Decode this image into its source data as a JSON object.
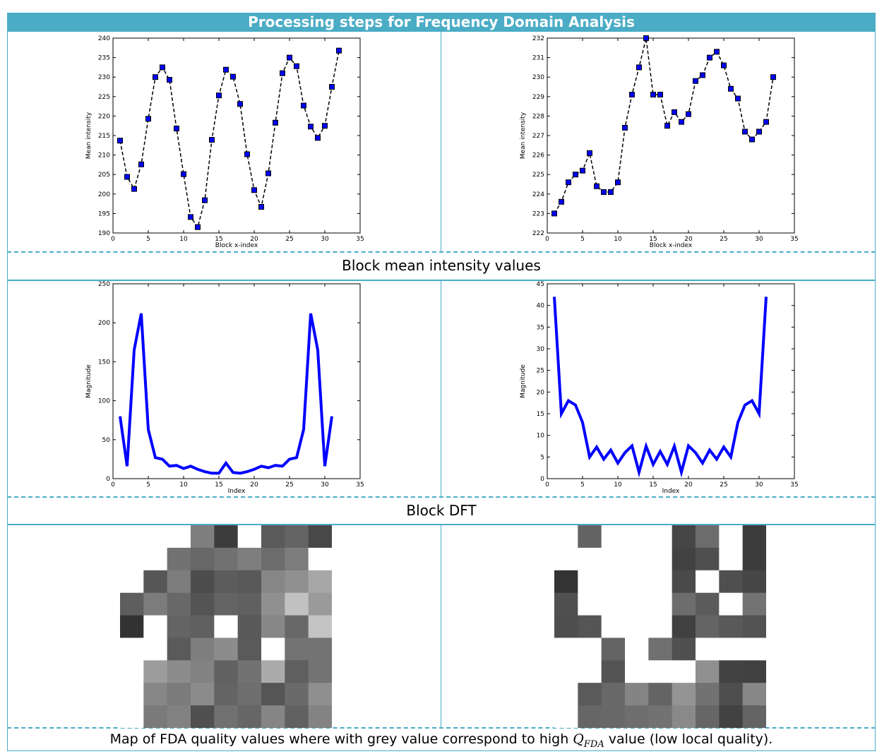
{
  "header": {
    "title": "Processing steps for Frequency Domain Analysis"
  },
  "captions": {
    "row1": "Block mean intensity values",
    "row2": "Block DFT",
    "row3_before": "Map of FDA quality values where with grey value correspond to high ",
    "row3_symbol": "Q",
    "row3_subscript": "FDA",
    "row3_after": " value (low local quality)."
  },
  "chart_data": [
    {
      "type": "line",
      "xlabel": "Block x-index",
      "ylabel": "Mean intensity",
      "xlim": [
        0,
        35
      ],
      "ylim": [
        190,
        240
      ],
      "xticks": [
        0,
        5,
        10,
        15,
        20,
        25,
        30,
        35
      ],
      "yticks": [
        190,
        195,
        200,
        205,
        210,
        215,
        220,
        225,
        230,
        235,
        240
      ],
      "style": {
        "line": "dashed",
        "line_color": "#000000",
        "marker": "square",
        "marker_color": "#0000ff"
      },
      "x": [
        1,
        2,
        3,
        4,
        5,
        6,
        7,
        8,
        9,
        10,
        11,
        12,
        13,
        14,
        15,
        16,
        17,
        18,
        19,
        20,
        21,
        22,
        23,
        24,
        25,
        26,
        27,
        28,
        29,
        30,
        31,
        32
      ],
      "y": [
        213.7,
        204.4,
        201.3,
        207.6,
        219.3,
        230.0,
        232.5,
        229.3,
        216.8,
        205.1,
        194.1,
        191.5,
        198.4,
        213.9,
        225.3,
        231.9,
        230.1,
        223.1,
        210.2,
        201.0,
        196.7,
        205.3,
        218.3,
        231.0,
        235.0,
        232.8,
        222.7,
        217.3,
        214.4,
        217.5,
        227.5,
        236.8
      ],
      "grid": false
    },
    {
      "type": "line",
      "xlabel": "Block x-index",
      "ylabel": "Mean intensity",
      "xlim": [
        0,
        35
      ],
      "ylim": [
        222,
        232
      ],
      "xticks": [
        0,
        5,
        10,
        15,
        20,
        25,
        30,
        35
      ],
      "yticks": [
        222,
        223,
        224,
        225,
        226,
        227,
        228,
        229,
        230,
        231,
        232
      ],
      "style": {
        "line": "dashed",
        "line_color": "#000000",
        "marker": "square",
        "marker_color": "#0000ff"
      },
      "x": [
        1,
        2,
        3,
        4,
        5,
        6,
        7,
        8,
        9,
        10,
        11,
        12,
        13,
        14,
        15,
        16,
        17,
        18,
        19,
        20,
        21,
        22,
        23,
        24,
        25,
        26,
        27,
        28,
        29,
        30,
        31,
        32
      ],
      "y": [
        223.0,
        223.6,
        224.6,
        225.0,
        225.2,
        226.1,
        224.4,
        224.1,
        224.1,
        224.6,
        227.4,
        229.1,
        230.5,
        232.0,
        229.1,
        229.1,
        227.5,
        228.2,
        227.7,
        228.1,
        229.8,
        230.1,
        231.0,
        231.3,
        230.6,
        229.4,
        228.9,
        227.2,
        226.8,
        227.2,
        227.7,
        230.0
      ],
      "grid": false
    },
    {
      "type": "line",
      "xlabel": "Index",
      "ylabel": "Magnitude",
      "xlim": [
        0,
        35
      ],
      "ylim": [
        0,
        250
      ],
      "xticks": [
        0,
        5,
        10,
        15,
        20,
        25,
        30,
        35
      ],
      "yticks": [
        0,
        50,
        100,
        150,
        200,
        250
      ],
      "style": {
        "line": "solid",
        "line_color": "#0000ff",
        "marker": "none"
      },
      "x": [
        1,
        2,
        3,
        4,
        5,
        6,
        7,
        8,
        9,
        10,
        11,
        12,
        13,
        14,
        15,
        16,
        17,
        18,
        19,
        20,
        21,
        22,
        23,
        24,
        25,
        26,
        27,
        28,
        29,
        30,
        31
      ],
      "y": [
        80,
        16,
        165,
        212,
        63,
        27,
        25,
        16,
        17,
        13,
        16,
        12,
        9,
        7,
        7,
        20,
        8,
        7,
        9,
        12,
        16,
        14,
        17,
        16,
        25,
        27,
        63,
        212,
        165,
        16,
        80
      ],
      "grid": false
    },
    {
      "type": "line",
      "xlabel": "Index",
      "ylabel": "Magnitude",
      "xlim": [
        0,
        35
      ],
      "ylim": [
        0,
        45
      ],
      "xticks": [
        0,
        5,
        10,
        15,
        20,
        25,
        30,
        35
      ],
      "yticks": [
        0,
        5,
        10,
        15,
        20,
        25,
        30,
        35,
        40,
        45
      ],
      "style": {
        "line": "solid",
        "line_color": "#0000ff",
        "marker": "none"
      },
      "x": [
        1,
        2,
        3,
        4,
        5,
        6,
        7,
        8,
        9,
        10,
        11,
        12,
        13,
        14,
        15,
        16,
        17,
        18,
        19,
        20,
        21,
        22,
        23,
        24,
        25,
        26,
        27,
        28,
        29,
        30,
        31
      ],
      "y": [
        42,
        15,
        18,
        17,
        13,
        5,
        7.3,
        4.5,
        6.6,
        3.6,
        6,
        7.6,
        1.5,
        7.5,
        3.3,
        6.3,
        3.3,
        7.5,
        1.5,
        7.6,
        6,
        3.6,
        6.6,
        4.5,
        7.3,
        5,
        13,
        17,
        18,
        15,
        42
      ],
      "grid": false
    },
    {
      "type": "heatmap",
      "colormap": "grey",
      "values": [
        [
          255,
          255,
          255,
          126,
          60,
          255,
          90,
          100,
          72
        ],
        [
          255,
          255,
          114,
          103,
          113,
          126,
          108,
          124,
          255
        ],
        [
          255,
          86,
          124,
          76,
          92,
          89,
          134,
          144,
          167
        ],
        [
          94,
          124,
          104,
          84,
          100,
          96,
          144,
          193,
          154
        ],
        [
          50,
          255,
          100,
          96,
          255,
          89,
          135,
          104,
          196
        ],
        [
          255,
          255,
          90,
          126,
          140,
          90,
          255,
          115,
          115
        ],
        [
          255,
          156,
          140,
          130,
          97,
          114,
          171,
          95,
          115
        ],
        [
          255,
          135,
          123,
          139,
          100,
          110,
          85,
          106,
          143
        ],
        [
          255,
          122,
          130,
          80,
          113,
          102,
          133,
          97,
          131
        ]
      ]
    },
    {
      "type": "heatmap",
      "colormap": "grey",
      "values": [
        [
          255,
          99,
          255,
          255,
          255,
          70,
          108,
          255,
          60
        ],
        [
          255,
          255,
          255,
          255,
          255,
          66,
          79,
          255,
          60
        ],
        [
          51,
          255,
          255,
          255,
          255,
          74,
          255,
          79,
          70
        ],
        [
          80,
          255,
          255,
          255,
          255,
          109,
          91,
          255,
          115
        ],
        [
          78,
          85,
          255,
          255,
          255,
          64,
          100,
          89,
          82
        ],
        [
          255,
          255,
          100,
          255,
          112,
          80,
          255,
          255,
          255
        ],
        [
          255,
          255,
          84,
          255,
          255,
          255,
          144,
          66,
          64
        ],
        [
          255,
          90,
          104,
          132,
          100,
          148,
          114,
          78,
          135
        ],
        [
          255,
          102,
          104,
          110,
          114,
          137,
          102,
          66,
          100
        ]
      ]
    }
  ]
}
